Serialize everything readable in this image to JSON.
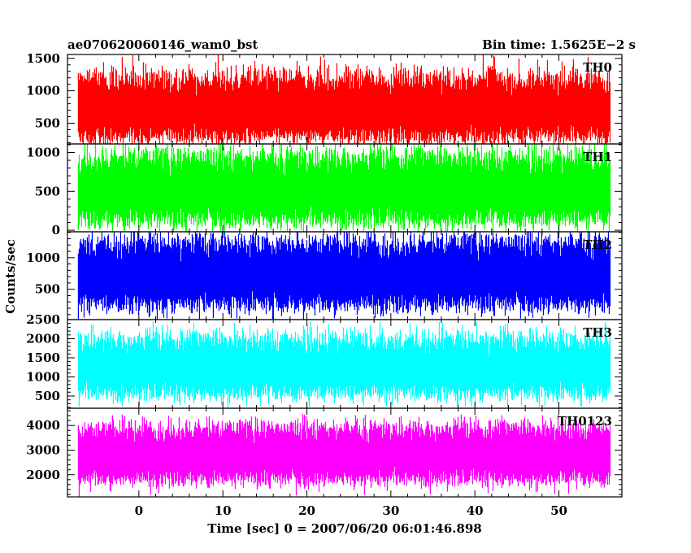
{
  "header": {
    "title": "ae070620060146_wam0_bst",
    "bin_time": "Bin time: 1.5625E−2 s"
  },
  "axes": {
    "ylabel": "Counts/sec",
    "xlabel": "Time [sec] 0 = 2007/06/20 06:01:46.898"
  },
  "chart_data": {
    "type": "line",
    "x_range": [
      -8.5,
      57.5
    ],
    "x_ticks": [
      0,
      10,
      20,
      30,
      40,
      50
    ],
    "x_tick_labels": [
      "0",
      "10",
      "20",
      "30",
      "40",
      "50"
    ],
    "data_x_range": [
      -7.2,
      56.1
    ],
    "bin_time_s": 0.015625,
    "grid": false,
    "panels": [
      {
        "name": "TH0",
        "color": "#ff0000",
        "ylim": [
          180,
          1560
        ],
        "yticks": [
          500,
          1000,
          1500
        ],
        "ytick_labels": [
          "500",
          "1000",
          "1500"
        ],
        "mean": 750,
        "low_envelope": 280,
        "high_envelope": 1200,
        "spike_max": 1560
      },
      {
        "name": "TH1",
        "color": "#00ff00",
        "ylim": [
          -20,
          1110
        ],
        "yticks": [
          0,
          500,
          1000
        ],
        "ytick_labels": [
          "0",
          "500",
          "1000"
        ],
        "mean": 520,
        "low_envelope": 120,
        "high_envelope": 950,
        "spike_max": 1110
      },
      {
        "name": "TH2",
        "color": "#0000ff",
        "ylim": [
          20,
          1410
        ],
        "yticks": [
          500,
          1000
        ],
        "ytick_labels": [
          "500",
          "1000"
        ],
        "mean": 750,
        "low_envelope": 250,
        "high_envelope": 1250,
        "spike_max": 1410
      },
      {
        "name": "TH3",
        "color": "#00ffff",
        "ylim": [
          180,
          2500
        ],
        "yticks": [
          500,
          1000,
          1500,
          2000,
          2500
        ],
        "ytick_labels": [
          "500",
          "1000",
          "1500",
          "2000",
          "2500"
        ],
        "mean": 1250,
        "low_envelope": 550,
        "high_envelope": 2000,
        "spike_max": 2450
      },
      {
        "name": "TH0123",
        "color": "#ff00ff",
        "ylim": [
          1100,
          4700
        ],
        "yticks": [
          2000,
          3000,
          4000
        ],
        "ytick_labels": [
          "2000",
          "3000",
          "4000"
        ],
        "mean": 2850,
        "low_envelope": 1800,
        "high_envelope": 3900,
        "spike_max": 4450
      }
    ]
  }
}
